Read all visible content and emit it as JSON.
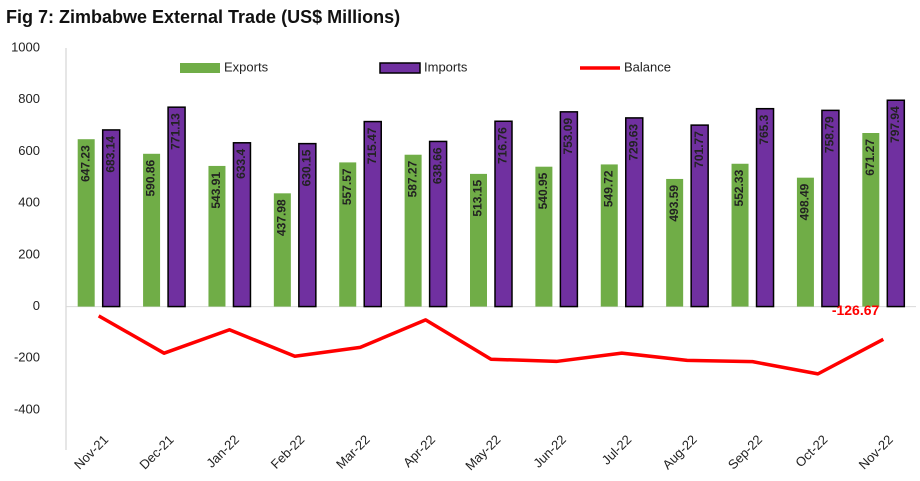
{
  "chart_data": {
    "type": "bar_line",
    "title": "Fig 7: Zimbabwe External Trade (US$ Millions)",
    "categories": [
      "Nov-21",
      "Dec-21",
      "Jan-22",
      "Feb-22",
      "Mar-22",
      "Apr-22",
      "May-22",
      "Jun-22",
      "Jul-22",
      "Aug-22",
      "Sep-22",
      "Oct-22",
      "Nov-22"
    ],
    "series": [
      {
        "name": "Exports",
        "type": "bar",
        "color": "#70ad47",
        "values": [
          647.23,
          590.86,
          543.91,
          437.98,
          557.57,
          587.27,
          513.15,
          540.95,
          549.72,
          493.59,
          552.33,
          498.49,
          671.27
        ]
      },
      {
        "name": "Imports",
        "type": "bar",
        "color": "#7030a0",
        "values": [
          683.14,
          771.13,
          633.4,
          630.15,
          715.47,
          638.66,
          716.76,
          753.09,
          729.63,
          701.77,
          765.3,
          758.79,
          797.94
        ]
      },
      {
        "name": "Balance",
        "type": "line",
        "color": "#ff0000",
        "values": [
          -35.91,
          -180.27,
          -89.49,
          -192.17,
          -157.9,
          -51.39,
          -203.61,
          -212.14,
          -179.91,
          -208.18,
          -212.97,
          -260.3,
          -126.67
        ],
        "value_labels": [
          null,
          null,
          null,
          null,
          null,
          null,
          null,
          null,
          null,
          null,
          null,
          null,
          "-126.67"
        ]
      }
    ],
    "ylim": [
      -400,
      1000
    ],
    "yticks": [
      -400,
      -200,
      0,
      200,
      400,
      600,
      800,
      1000
    ],
    "legend": "top"
  }
}
